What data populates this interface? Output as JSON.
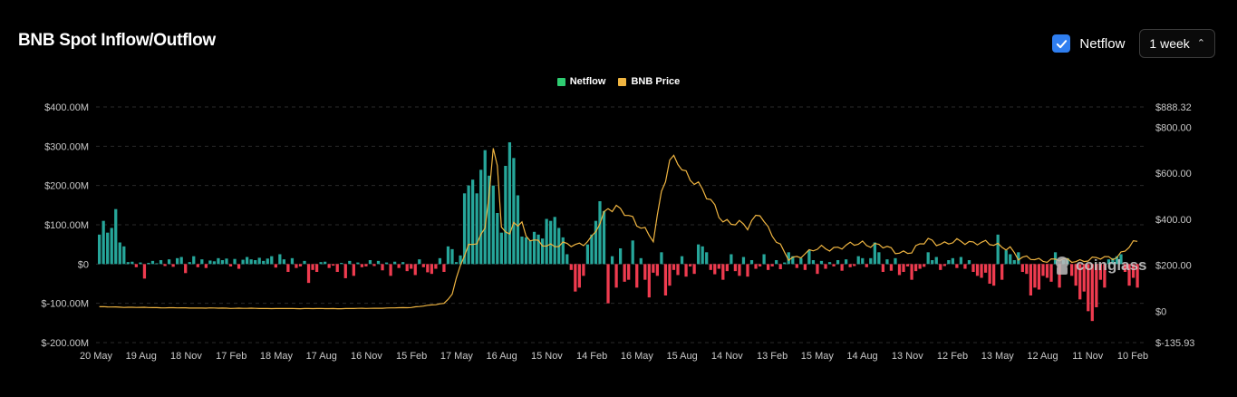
{
  "header": {
    "title": "BNB Spot Inflow/Outflow",
    "netflow_toggle_label": "Netflow",
    "netflow_checked": true,
    "interval_value": "1 week"
  },
  "watermark": "coinglass",
  "colors": {
    "netflow_positive": "#26a69a",
    "netflow_negative": "#ef3b4f",
    "price_line": "#f0b541",
    "legend_netflow": "#2ecc71",
    "grid": "#2a2a2a",
    "axis_text": "#c8c8c8"
  },
  "chart_data": {
    "type": "bar",
    "series": [
      {
        "name": "Netflow",
        "type": "bar",
        "axis": "left"
      },
      {
        "name": "BNB Price",
        "type": "line",
        "axis": "right"
      }
    ],
    "legend_placement": "top-center",
    "grid": true,
    "x_tick_labels": [
      "20 May",
      "19 Aug",
      "18 Nov",
      "17 Feb",
      "18 May",
      "17 Aug",
      "16 Nov",
      "15 Feb",
      "17 May",
      "16 Aug",
      "15 Nov",
      "14 Feb",
      "16 May",
      "15 Aug",
      "14 Nov",
      "13 Feb",
      "15 May",
      "14 Aug",
      "13 Nov",
      "12 Feb",
      "13 May",
      "12 Aug",
      "11 Nov",
      "10 Feb"
    ],
    "y_left": {
      "min": -200,
      "max": 400,
      "ticks": [
        "$-200.00M",
        "$-100.00M",
        "$0",
        "$100.00M",
        "$200.00M",
        "$300.00M",
        "$400.00M"
      ],
      "tick_values": [
        -200,
        -100,
        0,
        100,
        200,
        300,
        400
      ]
    },
    "y_right": {
      "min": -135.93,
      "max": 888.32,
      "ticks": [
        "$-135.93",
        "$0",
        "$200.00",
        "$400.00",
        "$600.00",
        "$800.00",
        "$888.32"
      ],
      "tick_values": [
        -135.93,
        0,
        200,
        400,
        600,
        800,
        888.32
      ]
    },
    "netflow_millions": [
      75,
      110,
      80,
      92,
      140,
      55,
      45,
      5,
      6,
      -8,
      4,
      -37,
      3,
      8,
      2,
      10,
      -5,
      12,
      -7,
      15,
      18,
      -23,
      5,
      20,
      -8,
      12,
      -10,
      9,
      7,
      15,
      10,
      14,
      -6,
      13,
      -12,
      11,
      18,
      12,
      10,
      16,
      8,
      14,
      20,
      -9,
      25,
      12,
      -20,
      15,
      -10,
      -6,
      8,
      -48,
      -15,
      -20,
      5,
      6,
      -10,
      -4,
      -20,
      3,
      -36,
      8,
      -30,
      4,
      -8,
      -6,
      10,
      -5,
      8,
      -16,
      4,
      -30,
      6,
      -10,
      5,
      -18,
      -12,
      -28,
      12,
      -8,
      -21,
      -25,
      -12,
      15,
      -20,
      45,
      38,
      5,
      22,
      180,
      200,
      215,
      180,
      240,
      290,
      225,
      200,
      130,
      80,
      250,
      310,
      270,
      175,
      70,
      68,
      60,
      82,
      75,
      65,
      115,
      110,
      120,
      92,
      68,
      25,
      -15,
      -70,
      -60,
      -30,
      50,
      75,
      110,
      160,
      135,
      -100,
      20,
      -60,
      40,
      -45,
      -40,
      60,
      -60,
      15,
      -40,
      -85,
      -22,
      -30,
      30,
      -80,
      -55,
      -15,
      -28,
      20,
      -32,
      -6,
      -25,
      50,
      45,
      30,
      -15,
      -26,
      -12,
      -40,
      -18,
      25,
      -18,
      -30,
      18,
      -32,
      10,
      -12,
      -6,
      25,
      -15,
      -6,
      10,
      -13,
      4,
      30,
      20,
      -10,
      15,
      -15,
      35,
      10,
      -25,
      8,
      -12,
      5,
      -6,
      10,
      -17,
      12,
      -8,
      -5,
      20,
      15,
      -8,
      15,
      55,
      30,
      -20,
      12,
      -17,
      15,
      -28,
      -20,
      -6,
      -40,
      -18,
      -12,
      -7,
      30,
      10,
      18,
      -15,
      -5,
      10,
      15,
      -10,
      18,
      -12,
      10,
      -20,
      -30,
      -35,
      -22,
      -50,
      -55,
      75,
      -40,
      35,
      25,
      10,
      30,
      -20,
      -25,
      -80,
      -60,
      -65,
      -30,
      -35,
      -45,
      30,
      -60,
      10,
      15,
      -30,
      -55,
      -90,
      -70,
      -120,
      -145,
      -110,
      -40,
      -60,
      12,
      15,
      20,
      25,
      -20,
      -55,
      -35,
      -60
    ]
  }
}
